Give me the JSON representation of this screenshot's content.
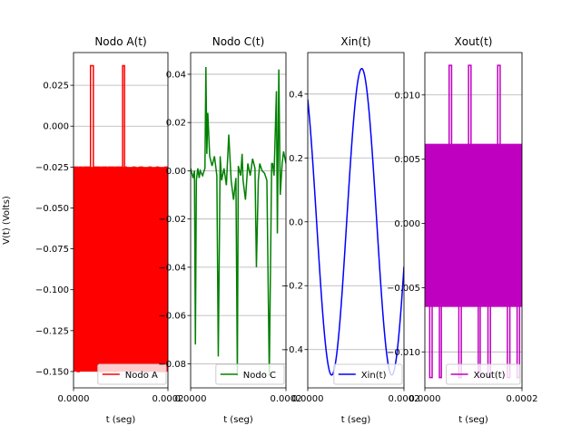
{
  "chart_data": [
    {
      "type": "line",
      "title": "Nodo A(t)",
      "xlabel": "t (seg)",
      "ylabel": "V(t) (Volts)",
      "xlim": [
        0,
        0.0002
      ],
      "ylim": [
        -0.16,
        0.045
      ],
      "xticks": [
        "0.0000",
        "0.0002"
      ],
      "yticks": [
        0.025,
        0.0,
        -0.025,
        -0.05,
        -0.075,
        -0.1,
        -0.125,
        -0.15
      ],
      "ytick_labels": [
        "0.025",
        "0.000",
        "−0.025",
        "−0.050",
        "−0.075",
        "−0.100",
        "−0.125",
        "−0.150"
      ],
      "grid": true,
      "legend": "lower right",
      "series": [
        {
          "name": "Nodo A",
          "color": "#ff0000",
          "x": [
            0,
            8e-06,
            8e-06,
            1.2e-05,
            1.2e-05,
            1.8e-05,
            1.8e-05,
            2.2e-05,
            2.2e-05,
            3.6e-05,
            3.6e-05,
            4.2e-05,
            4.2e-05,
            5.6e-05,
            5.6e-05,
            6e-05,
            6e-05,
            7e-05,
            7e-05,
            7.4e-05,
            7.4e-05,
            8.6e-05,
            8.6e-05,
            9e-05,
            9e-05,
            0.000104,
            0.000104,
            0.000108,
            0.000108,
            0.000112,
            0.000112,
            0.000126,
            0.000126,
            0.00013,
            0.00013,
            0.00014,
            0.00014,
            0.000146,
            0.000146,
            0.00016,
            0.00016,
            0.000164,
            0.000164,
            0.000176,
            0.000176,
            0.00018,
            0.00018,
            0.000194,
            0.000194,
            0.0002
          ],
          "y": [
            -0.025,
            -0.025,
            -0.15,
            -0.15,
            -0.025,
            -0.025,
            -0.09,
            -0.09,
            -0.025,
            -0.025,
            0.037,
            0.037,
            -0.025,
            -0.025,
            -0.15,
            -0.15,
            -0.025,
            -0.025,
            -0.09,
            -0.09,
            -0.025,
            -0.025,
            -0.15,
            -0.15,
            -0.025,
            -0.025,
            0.037,
            0.037,
            -0.025,
            -0.025,
            -0.15,
            -0.15,
            -0.025,
            -0.025,
            -0.09,
            -0.09,
            -0.025,
            -0.025,
            -0.15,
            -0.15,
            -0.025,
            -0.025,
            -0.09,
            -0.09,
            -0.025,
            -0.025,
            -0.15,
            -0.15,
            -0.025,
            -0.025
          ],
          "fill_band": [
            -0.15,
            -0.025
          ]
        }
      ]
    },
    {
      "type": "line",
      "title": "Nodo C(t)",
      "xlabel": "t (seg)",
      "xlim": [
        0,
        0.0002
      ],
      "ylim": [
        -0.09,
        0.049
      ],
      "xticks": [
        "0.0000",
        "0.0002"
      ],
      "yticks": [
        0.04,
        0.02,
        0.0,
        -0.02,
        -0.04,
        -0.06,
        -0.08
      ],
      "ytick_labels": [
        "0.04",
        "0.02",
        "0.00",
        "−0.02",
        "−0.04",
        "−0.06",
        "−0.08"
      ],
      "grid": true,
      "legend": "lower right",
      "series": [
        {
          "name": "Nodo C",
          "color": "#008000",
          "x": [
            0,
            5e-06,
            8e-06,
            1e-05,
            1.2e-05,
            1.5e-05,
            1.8e-05,
            2e-05,
            2.5e-05,
            3e-05,
            3.2e-05,
            3.4e-05,
            3.6e-05,
            4e-05,
            4.5e-05,
            5e-05,
            5.5e-05,
            5.8e-05,
            6.2e-05,
            6.5e-05,
            7e-05,
            7.5e-05,
            8e-05,
            8.5e-05,
            9e-05,
            9.5e-05,
            9.8e-05,
            0.0001,
            0.000105,
            0.000108,
            0.00011,
            0.000115,
            0.00012,
            0.000125,
            0.00013,
            0.000135,
            0.000138,
            0.000142,
            0.000145,
            0.00015,
            0.000155,
            0.00016,
            0.000165,
            0.00017,
            0.000172,
            0.000175,
            0.00018,
            0.000182,
            0.000185,
            0.000188,
            0.000192,
            0.000195,
            0.0002
          ],
          "y": [
            0.001,
            -0.003,
            0.0,
            -0.072,
            -0.004,
            0.001,
            -0.003,
            0.0,
            -0.002,
            0.001,
            0.043,
            0.007,
            0.024,
            0.006,
            0.002,
            0.006,
            -0.002,
            -0.077,
            0.006,
            -0.004,
            0.001,
            -0.006,
            0.015,
            -0.004,
            -0.012,
            -0.003,
            -0.085,
            0.002,
            -0.002,
            0.007,
            -0.004,
            -0.012,
            0.003,
            -0.002,
            0.005,
            0.001,
            -0.04,
            -0.004,
            0.003,
            0.0,
            -0.001,
            -0.004,
            -0.085,
            0.003,
            0.003,
            -0.002,
            0.033,
            -0.026,
            0.042,
            -0.01,
            0.003,
            0.008,
            0.003
          ]
        }
      ]
    },
    {
      "type": "line",
      "title": "Xin(t)",
      "xlabel": "t (seg)",
      "xlim": [
        0,
        0.0002
      ],
      "ylim": [
        -0.52,
        0.53
      ],
      "xticks": [
        "0.0000",
        "0.0002"
      ],
      "yticks": [
        0.4,
        0.2,
        0.0,
        -0.2,
        -0.4
      ],
      "ytick_labels": [
        "0.4",
        "0.2",
        "0.0",
        "−0.2",
        "−0.4"
      ],
      "grid": true,
      "legend": "lower right",
      "series": [
        {
          "name": "Xin(t)",
          "color": "#0000ff",
          "sine": {
            "amplitude": 0.48,
            "period": 0.000125,
            "phase_deg": 127
          }
        }
      ]
    },
    {
      "type": "line",
      "title": "Xout(t)",
      "xlabel": "t (seg)",
      "xlim": [
        0,
        0.0002
      ],
      "ylim": [
        -0.0128,
        0.0133
      ],
      "xticks": [
        "0.0000",
        "0.0002"
      ],
      "yticks": [
        0.01,
        0.005,
        0.0,
        -0.005,
        -0.01
      ],
      "ytick_labels": [
        "0.010",
        "0.005",
        "0.000",
        "−0.005",
        "−0.010"
      ],
      "grid": true,
      "legend": "lower right",
      "series": [
        {
          "name": "Xout(t)",
          "color": "#c000c0",
          "x": [
            0,
            1e-05,
            1e-05,
            1.5e-05,
            1.5e-05,
            3e-05,
            3e-05,
            3.4e-05,
            3.4e-05,
            5e-05,
            5e-05,
            5.5e-05,
            5.5e-05,
            7e-05,
            7e-05,
            7.5e-05,
            7.5e-05,
            9e-05,
            9e-05,
            9.5e-05,
            9.5e-05,
            0.00011,
            0.00011,
            0.000114,
            0.000114,
            0.00013,
            0.00013,
            0.000135,
            0.000135,
            0.00015,
            0.00015,
            0.000155,
            0.000155,
            0.00017,
            0.00017,
            0.000175,
            0.000175,
            0.00019,
            0.00019,
            0.000195,
            0.000195,
            0.0002
          ],
          "y": [
            0.006,
            0.006,
            -0.012,
            -0.012,
            0.006,
            0.006,
            -0.012,
            -0.012,
            0.006,
            0.006,
            0.0123,
            0.0123,
            0.006,
            0.006,
            -0.012,
            -0.012,
            0.006,
            0.006,
            0.0123,
            0.0123,
            0.006,
            0.006,
            -0.012,
            -0.012,
            0.006,
            0.006,
            -0.012,
            -0.012,
            0.006,
            0.006,
            0.0123,
            0.0123,
            0.006,
            0.006,
            -0.012,
            -0.012,
            0.006,
            0.006,
            -0.012,
            -0.012,
            0.006,
            0.006
          ],
          "fill_band": [
            -0.0065,
            0.0062
          ]
        }
      ]
    }
  ]
}
